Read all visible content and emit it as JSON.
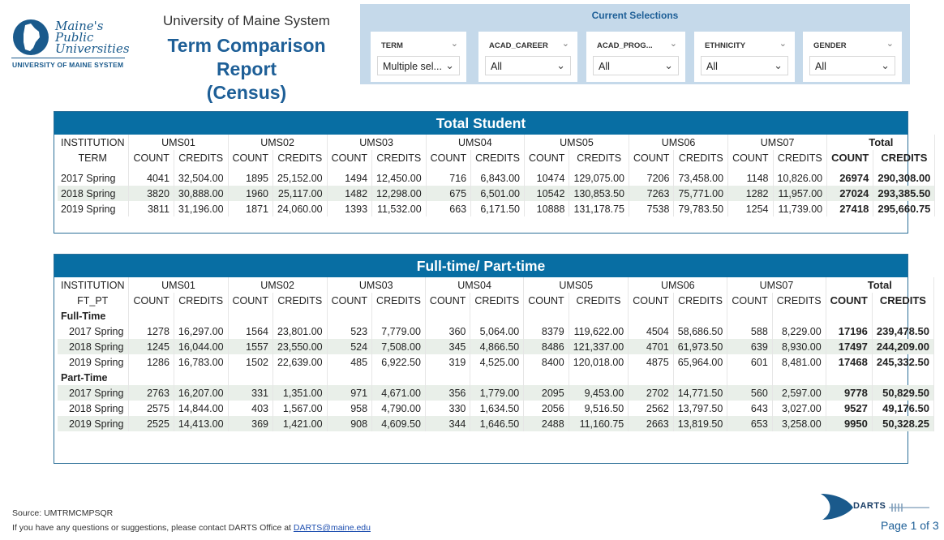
{
  "logo": {
    "line1": "Maine's",
    "line2": "Public",
    "line3": "Universities",
    "bottom": "UNIVERSITY OF MAINE SYSTEM"
  },
  "header": {
    "system_name": "University of Maine System",
    "report_title_1": "Term Comparison Report",
    "report_title_2": "(Census)"
  },
  "selections": {
    "title": "Current Selections",
    "slicers": [
      {
        "label": "TERM",
        "value": "Multiple sel..."
      },
      {
        "label": "ACAD_CAREER",
        "value": "All"
      },
      {
        "label": "ACAD_PROG...",
        "value": "All"
      },
      {
        "label": "ETHNICITY",
        "value": "All"
      },
      {
        "label": "GENDER",
        "value": "All"
      }
    ]
  },
  "total_table": {
    "title": "Total Student",
    "row_header_1": "INSTITUTION",
    "row_header_2": "TERM",
    "institutions": [
      "UMS01",
      "UMS02",
      "UMS03",
      "UMS04",
      "UMS05",
      "UMS06",
      "UMS07",
      "Total"
    ],
    "count_label": "COUNT",
    "credits_label": "CREDITS",
    "rows": [
      {
        "term": "2017 Spring",
        "values": [
          "4041",
          "32,504.00",
          "1895",
          "25,152.00",
          "1494",
          "12,450.00",
          "716",
          "6,843.00",
          "10474",
          "129,075.00",
          "7206",
          "73,458.00",
          "1148",
          "10,826.00",
          "26974",
          "290,308.00"
        ]
      },
      {
        "term": "2018 Spring",
        "values": [
          "3820",
          "30,888.00",
          "1960",
          "25,117.00",
          "1482",
          "12,298.00",
          "675",
          "6,501.00",
          "10542",
          "130,853.50",
          "7263",
          "75,771.00",
          "1282",
          "11,957.00",
          "27024",
          "293,385.50"
        ]
      },
      {
        "term": "2019 Spring",
        "values": [
          "3811",
          "31,196.00",
          "1871",
          "24,060.00",
          "1393",
          "11,532.00",
          "663",
          "6,171.50",
          "10888",
          "131,178.75",
          "7538",
          "79,783.50",
          "1254",
          "11,739.00",
          "27418",
          "295,660.75"
        ]
      }
    ]
  },
  "ftpt_table": {
    "title": "Full-time/ Part-time",
    "row_header_1": "INSTITUTION",
    "row_header_2": "FT_PT",
    "institutions": [
      "UMS01",
      "UMS02",
      "UMS03",
      "UMS04",
      "UMS05",
      "UMS06",
      "UMS07",
      "Total"
    ],
    "count_label": "COUNT",
    "credits_label": "CREDITS",
    "groups": [
      {
        "name": "Full-Time",
        "rows": [
          {
            "term": "2017 Spring",
            "values": [
              "1278",
              "16,297.00",
              "1564",
              "23,801.00",
              "523",
              "7,779.00",
              "360",
              "5,064.00",
              "8379",
              "119,622.00",
              "4504",
              "58,686.50",
              "588",
              "8,229.00",
              "17196",
              "239,478.50"
            ]
          },
          {
            "term": "2018 Spring",
            "values": [
              "1245",
              "16,044.00",
              "1557",
              "23,550.00",
              "524",
              "7,508.00",
              "345",
              "4,866.50",
              "8486",
              "121,337.00",
              "4701",
              "61,973.50",
              "639",
              "8,930.00",
              "17497",
              "244,209.00"
            ]
          },
          {
            "term": "2019 Spring",
            "values": [
              "1286",
              "16,783.00",
              "1502",
              "22,639.00",
              "485",
              "6,922.50",
              "319",
              "4,525.00",
              "8400",
              "120,018.00",
              "4875",
              "65,964.00",
              "601",
              "8,481.00",
              "17468",
              "245,332.50"
            ]
          }
        ]
      },
      {
        "name": "Part-Time",
        "rows": [
          {
            "term": "2017 Spring",
            "values": [
              "2763",
              "16,207.00",
              "331",
              "1,351.00",
              "971",
              "4,671.00",
              "356",
              "1,779.00",
              "2095",
              "9,453.00",
              "2702",
              "14,771.50",
              "560",
              "2,597.00",
              "9778",
              "50,829.50"
            ]
          },
          {
            "term": "2018 Spring",
            "values": [
              "2575",
              "14,844.00",
              "403",
              "1,567.00",
              "958",
              "4,790.00",
              "330",
              "1,634.50",
              "2056",
              "9,516.50",
              "2562",
              "13,797.50",
              "643",
              "3,027.00",
              "9527",
              "49,176.50"
            ]
          },
          {
            "term": "2019 Spring",
            "values": [
              "2525",
              "14,413.00",
              "369",
              "1,421.00",
              "908",
              "4,609.50",
              "344",
              "1,646.50",
              "2488",
              "11,160.75",
              "2663",
              "13,819.50",
              "653",
              "3,258.00",
              "9950",
              "50,328.25"
            ]
          }
        ]
      }
    ]
  },
  "footer": {
    "source": "Source: UMTRMCMPSQR",
    "contact_text": "If you have any questions or suggestions, please contact DARTS Office at ",
    "contact_email": "DARTS@maine.edu",
    "darts_logo": "DARTS",
    "page": "Page 1 of 3"
  },
  "colors": {
    "accent": "#086ea3",
    "panel": "#c5d9ea",
    "title_blue": "#1e5f97",
    "alt_row": "#e9efe9"
  }
}
